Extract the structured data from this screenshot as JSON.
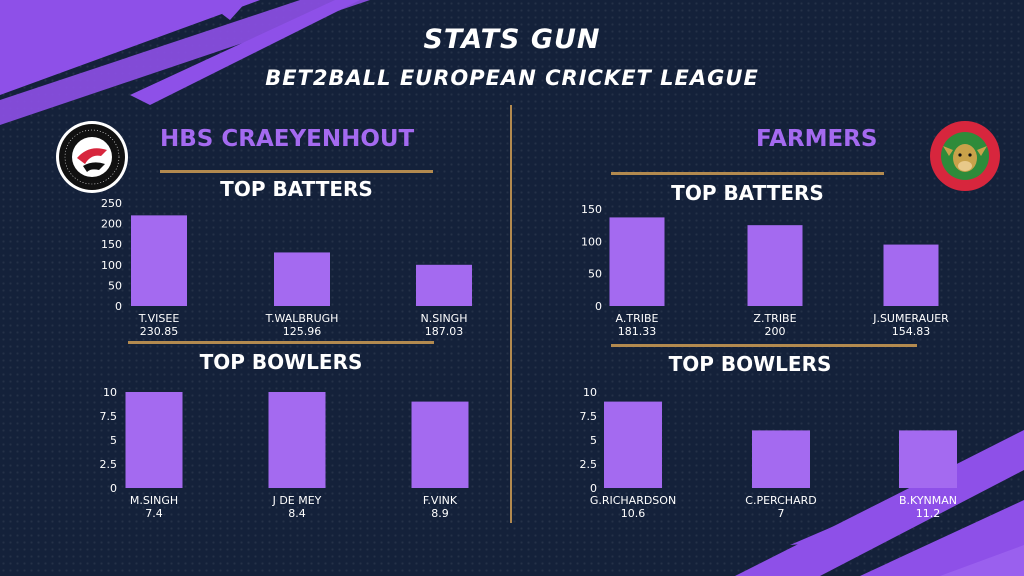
{
  "header": {
    "title": "STATS GUN",
    "subtitle": "BET2BALL EUROPEAN CRICKET LEAGUE"
  },
  "colors": {
    "background": "#14213a",
    "bar": "#a46af0",
    "accent_gold": "#b38a4f",
    "team_name": "#a46af0",
    "decor_stripes": "#8e50e8"
  },
  "teams": [
    {
      "name": "HBS CRAEYENHOUT",
      "logo_icon": "hbs-craeyenhout-crest",
      "batters_title": "TOP BATTERS",
      "bowlers_title": "TOP BOWLERS"
    },
    {
      "name": "FARMERS",
      "logo_icon": "farmers-cc-jersey-crest",
      "batters_title": "TOP BATTERS",
      "bowlers_title": "TOP BOWLERS"
    }
  ],
  "chart_data": [
    {
      "id": "hbs-batters",
      "type": "bar",
      "title": "TOP BATTERS",
      "categories": [
        "T.VISEE",
        "T.WALBRUGH",
        "N.SINGH"
      ],
      "values": [
        220,
        130,
        100
      ],
      "data_labels": [
        "230.85",
        "125.96",
        "187.03"
      ],
      "ylim": [
        0,
        250
      ],
      "yticks": [
        "0",
        "50",
        "100",
        "150",
        "200",
        "250"
      ],
      "grid": false
    },
    {
      "id": "hbs-bowlers",
      "type": "bar",
      "title": "TOP BOWLERS",
      "categories": [
        "M.SINGH",
        "J DE MEY",
        "F.VINK"
      ],
      "values": [
        10,
        10,
        9
      ],
      "data_labels": [
        "7.4",
        "8.4",
        "8.9"
      ],
      "ylim": [
        0,
        10
      ],
      "yticks": [
        "0",
        "2.5",
        "5",
        "7.5",
        "10"
      ],
      "grid": false
    },
    {
      "id": "farmers-batters",
      "type": "bar",
      "title": "TOP BATTERS",
      "categories": [
        "A.TRIBE",
        "Z.TRIBE",
        "J.SUMERAUER"
      ],
      "values": [
        137,
        125,
        95
      ],
      "data_labels": [
        "181.33",
        "200",
        "154.83"
      ],
      "ylim": [
        0,
        150
      ],
      "yticks": [
        "0",
        "50",
        "100",
        "150"
      ],
      "grid": false
    },
    {
      "id": "farmers-bowlers",
      "type": "bar",
      "title": "TOP BOWLERS",
      "categories": [
        "G.RICHARDSON",
        "C.PERCHARD",
        "B.KYNMAN"
      ],
      "values": [
        9,
        6,
        6
      ],
      "data_labels": [
        "10.6",
        "7",
        "11.2"
      ],
      "ylim": [
        0,
        10
      ],
      "yticks": [
        "0",
        "2.5",
        "5",
        "7.5",
        "10"
      ],
      "grid": false
    }
  ]
}
